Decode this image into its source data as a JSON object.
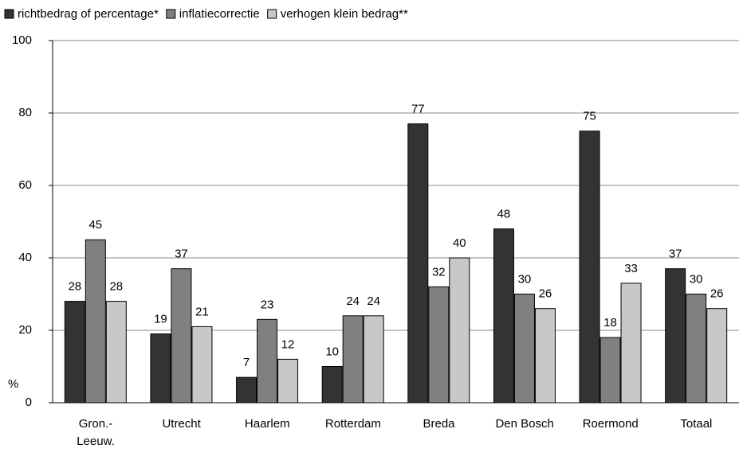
{
  "chart_data": {
    "type": "bar",
    "y_label": "%",
    "categories": [
      "Gron.-\nLeeuw.",
      "Utrecht",
      "Haarlem",
      "Rotterdam",
      "Breda",
      "Den Bosch",
      "Roermond",
      "Totaal"
    ],
    "series": [
      {
        "name": "richtbedrag of percentage*",
        "color": "#333333",
        "values": [
          28,
          19,
          7,
          10,
          77,
          48,
          75,
          37
        ]
      },
      {
        "name": "inflatiecorrectie",
        "color": "#808080",
        "values": [
          45,
          37,
          23,
          24,
          32,
          30,
          18,
          30
        ]
      },
      {
        "name": "verhogen klein bedrag**",
        "color": "#c8c8c8",
        "values": [
          28,
          21,
          12,
          24,
          40,
          26,
          33,
          26
        ]
      }
    ],
    "ylim": [
      0,
      100
    ],
    "yticks": [
      0,
      20,
      40,
      60,
      80,
      100
    ],
    "grid": true,
    "legend": "top"
  }
}
